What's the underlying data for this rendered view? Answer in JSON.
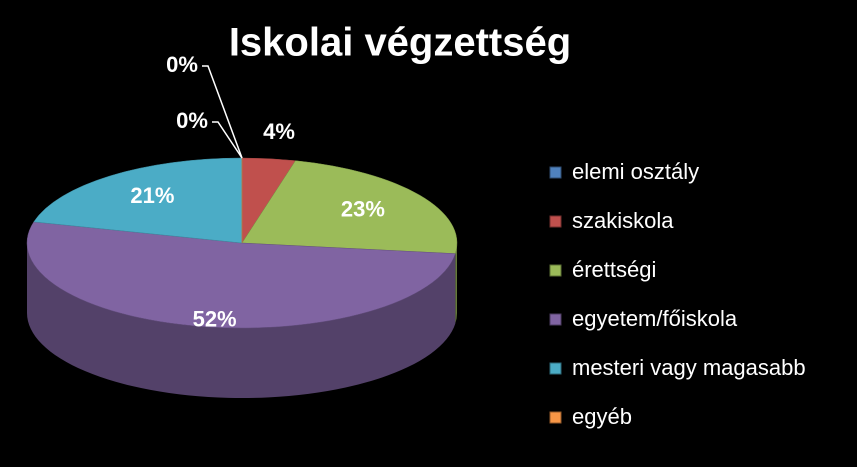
{
  "chart_data": {
    "type": "pie",
    "title": "Iskolai végzettség",
    "categories": [
      "elemi osztály",
      "szakiskola",
      "érettségi",
      "egyetem/főiskola",
      "mesteri vagy magasabb",
      "egyéb"
    ],
    "values": [
      0,
      4,
      23,
      52,
      21,
      0
    ],
    "value_labels": [
      "0%",
      "4%",
      "23%",
      "52%",
      "21%",
      "0%"
    ],
    "colors": [
      "#4f81bd",
      "#c0504d",
      "#9bbb59",
      "#8064a2",
      "#4bacc6",
      "#f79646"
    ]
  }
}
